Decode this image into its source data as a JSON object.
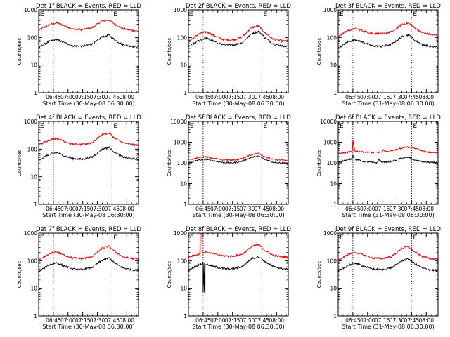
{
  "colors": {
    "events": "#000000",
    "lld": "#e00000",
    "axes": "#000000",
    "background": "#ffffff"
  },
  "chart_data": [
    {
      "type": "line",
      "title": "Det 1f BLACK = Events, RED = LLD",
      "xlabel": "Start Time (30-May-08 06:30:00)",
      "ylabel": "Counts/sec",
      "x_unit": "hh:mm",
      "xlim": [
        "06:30",
        "08:12"
      ],
      "xticks": [
        "06:45",
        "07:00",
        "07:15",
        "07:30",
        "07:45",
        "08:00"
      ],
      "yscale": "log",
      "ylim": [
        1,
        1000
      ],
      "yticks": [
        "1",
        "10",
        "100",
        "1000"
      ],
      "vlines": [
        "06:45",
        "07:45"
      ],
      "top_markers": [
        "E",
        "E"
      ],
      "series": [
        {
          "name": "Events",
          "color": "#000000",
          "x": [
            "06:30",
            "06:40",
            "06:48",
            "06:56",
            "07:05",
            "07:15",
            "07:25",
            "07:35",
            "07:42",
            "07:48",
            "07:56",
            "08:05",
            "08:12"
          ],
          "y": [
            42,
            70,
            85,
            65,
            50,
            48,
            58,
            105,
            120,
            80,
            55,
            48,
            45
          ]
        },
        {
          "name": "LLD",
          "color": "#e00000",
          "x": [
            "06:30",
            "06:40",
            "06:48",
            "06:56",
            "07:05",
            "07:15",
            "07:25",
            "07:35",
            "07:42",
            "07:48",
            "07:56",
            "08:05",
            "08:12"
          ],
          "y": [
            180,
            280,
            340,
            270,
            200,
            190,
            230,
            400,
            430,
            300,
            210,
            180,
            170
          ]
        }
      ]
    },
    {
      "type": "line",
      "title": "Det 2f BLACK = Events, RED = LLD",
      "xlabel": "Start Time (30-May-08 06:30:00)",
      "ylabel": "Counts/sec",
      "x_unit": "hh:mm",
      "xlim": [
        "06:30",
        "08:12"
      ],
      "xticks": [
        "06:45",
        "07:00",
        "07:15",
        "07:30",
        "07:45",
        "08:00"
      ],
      "yscale": "log",
      "ylim": [
        1,
        1000
      ],
      "yticks": [
        "1",
        "10",
        "100",
        "1000"
      ],
      "vlines": [
        "06:45",
        "07:45"
      ],
      "top_markers": [
        "E",
        "E"
      ],
      "series": [
        {
          "name": "Events",
          "color": "#000000",
          "x": [
            "06:30",
            "06:40",
            "06:48",
            "06:56",
            "07:05",
            "07:15",
            "07:25",
            "07:35",
            "07:42",
            "07:48",
            "07:56",
            "08:05",
            "08:12"
          ],
          "y": [
            45,
            75,
            95,
            72,
            55,
            52,
            65,
            140,
            165,
            100,
            60,
            50,
            47
          ]
        },
        {
          "name": "LLD",
          "color": "#e00000",
          "x": [
            "06:30",
            "06:40",
            "06:48",
            "06:56",
            "07:05",
            "07:15",
            "07:25",
            "07:35",
            "07:42",
            "07:48",
            "07:56",
            "08:05",
            "08:12"
          ],
          "y": [
            70,
            130,
            160,
            120,
            85,
            80,
            105,
            230,
            260,
            150,
            90,
            75,
            72
          ]
        }
      ]
    },
    {
      "type": "line",
      "title": "Det 3f BLACK = Events, RED = LLD",
      "xlabel": "Start Time (31-May-08 06:30:00)",
      "ylabel": "Counts/sec",
      "x_unit": "hh:mm",
      "xlim": [
        "06:30",
        "08:12"
      ],
      "xticks": [
        "06:45",
        "07:00",
        "07:15",
        "07:30",
        "07:45",
        "08:00"
      ],
      "yscale": "log",
      "ylim": [
        1,
        1000
      ],
      "yticks": [
        "1",
        "10",
        "100",
        "1000"
      ],
      "vlines": [
        "06:45",
        "07:45"
      ],
      "top_markers": [
        "E",
        "E"
      ],
      "series": [
        {
          "name": "Events",
          "color": "#000000",
          "x": [
            "06:30",
            "06:40",
            "06:48",
            "06:56",
            "07:05",
            "07:15",
            "07:25",
            "07:35",
            "07:42",
            "07:48",
            "07:56",
            "08:05",
            "08:12"
          ],
          "y": [
            40,
            70,
            85,
            65,
            50,
            47,
            58,
            105,
            125,
            80,
            55,
            47,
            44
          ]
        },
        {
          "name": "LLD",
          "color": "#e00000",
          "x": [
            "06:30",
            "06:40",
            "06:48",
            "06:56",
            "07:05",
            "07:15",
            "07:25",
            "07:35",
            "07:42",
            "07:48",
            "07:56",
            "08:05",
            "08:12"
          ],
          "y": [
            110,
            180,
            210,
            170,
            140,
            135,
            160,
            300,
            330,
            220,
            150,
            125,
            120
          ]
        }
      ]
    },
    {
      "type": "line",
      "title": "Det 4f BLACK = Events, RED = LLD",
      "xlabel": "Start Time (30-May-08 06:30:00)",
      "ylabel": "Counts/sec",
      "x_unit": "hh:mm",
      "xlim": [
        "06:30",
        "08:12"
      ],
      "xticks": [
        "06:45",
        "07:00",
        "07:15",
        "07:30",
        "07:45",
        "08:00"
      ],
      "yscale": "log",
      "ylim": [
        1,
        1000
      ],
      "yticks": [
        "1",
        "10",
        "100",
        "1000"
      ],
      "vlines": [
        "06:45",
        "07:45"
      ],
      "top_markers": [
        "E",
        "E"
      ],
      "series": [
        {
          "name": "Events",
          "color": "#000000",
          "x": [
            "06:30",
            "06:40",
            "06:48",
            "06:56",
            "07:05",
            "07:15",
            "07:25",
            "07:35",
            "07:42",
            "07:48",
            "07:56",
            "08:05",
            "08:12"
          ],
          "y": [
            40,
            62,
            75,
            58,
            45,
            43,
            52,
            100,
            115,
            75,
            52,
            45,
            42
          ]
        },
        {
          "name": "LLD",
          "color": "#e00000",
          "x": [
            "06:30",
            "06:40",
            "06:48",
            "06:56",
            "07:05",
            "07:15",
            "07:25",
            "07:35",
            "07:42",
            "07:48",
            "07:56",
            "08:05",
            "08:12"
          ],
          "y": [
            140,
            210,
            250,
            195,
            150,
            145,
            175,
            340,
            380,
            240,
            170,
            145,
            140
          ]
        }
      ]
    },
    {
      "type": "line",
      "title": "Det 5f BLACK = Events, RED = LLD",
      "xlabel": "Start Time (30-May-08 06:30:00)",
      "ylabel": "Counts/sec",
      "x_unit": "hh:mm",
      "xlim": [
        "06:30",
        "08:12"
      ],
      "xticks": [
        "06:45",
        "07:00",
        "07:15",
        "07:30",
        "07:45",
        "08:00"
      ],
      "yscale": "log",
      "ylim": [
        1,
        10000
      ],
      "yticks": [
        "1",
        "10",
        "100",
        "1000",
        "10000"
      ],
      "vlines": [
        "06:45",
        "07:45"
      ],
      "top_markers": [
        "E",
        "E"
      ],
      "series": [
        {
          "name": "Events",
          "color": "#000000",
          "x": [
            "06:30",
            "06:40",
            "06:48",
            "06:56",
            "07:05",
            "07:15",
            "07:25",
            "07:35",
            "07:42",
            "07:48",
            "07:56",
            "08:05",
            "08:12"
          ],
          "y": [
            100,
            135,
            150,
            125,
            105,
            100,
            120,
            190,
            210,
            150,
            110,
            100,
            98
          ]
        },
        {
          "name": "LLD",
          "color": "#e00000",
          "x": [
            "06:30",
            "06:40",
            "06:48",
            "06:56",
            "07:05",
            "07:15",
            "07:25",
            "07:35",
            "07:42",
            "07:48",
            "07:56",
            "08:05",
            "08:12"
          ],
          "y": [
            140,
            180,
            200,
            165,
            140,
            135,
            160,
            260,
            290,
            200,
            150,
            135,
            130
          ]
        }
      ]
    },
    {
      "type": "line",
      "title": "Det 6f BLACK = Events, RED = LLD",
      "xlabel": "Start Time (31-May-08 06:30:00)",
      "ylabel": "Counts/sec",
      "x_unit": "hh:mm",
      "xlim": [
        "06:30",
        "08:12"
      ],
      "xticks": [
        "06:45",
        "07:00",
        "07:15",
        "07:30",
        "07:45",
        "08:00"
      ],
      "yscale": "log",
      "ylim": [
        1,
        10000
      ],
      "yticks": [
        "1",
        "10",
        "100",
        "1000",
        "10000"
      ],
      "vlines": [
        "06:45",
        "07:45"
      ],
      "top_markers": [
        "E",
        "E"
      ],
      "series": [
        {
          "name": "Events",
          "color": "#000000",
          "x": [
            "06:30",
            "06:40",
            "06:44",
            "06:45",
            "06:47",
            "06:55",
            "07:05",
            "07:10",
            "07:11",
            "07:15",
            "07:25",
            "07:35",
            "07:42",
            "07:48",
            "07:56",
            "08:05",
            "08:12"
          ],
          "y": [
            110,
            140,
            160,
            250,
            150,
            120,
            105,
            100,
            150,
            108,
            120,
            170,
            185,
            140,
            115,
            105,
            100
          ]
        },
        {
          "name": "LLD",
          "color": "#e00000",
          "x": [
            "06:30",
            "06:40",
            "06:44",
            "06:45",
            "06:47",
            "06:55",
            "07:05",
            "07:15",
            "07:16",
            "07:20",
            "07:30",
            "07:40",
            "07:50",
            "08:00",
            "08:12"
          ],
          "y": [
            280,
            330,
            360,
            1300,
            380,
            340,
            320,
            330,
            420,
            350,
            450,
            600,
            480,
            330,
            300
          ]
        }
      ]
    },
    {
      "type": "line",
      "title": "Det 7f BLACK = Events, RED = LLD",
      "xlabel": "Start Time (30-May-08 06:30:00)",
      "ylabel": "Counts/sec",
      "x_unit": "hh:mm",
      "xlim": [
        "06:30",
        "08:12"
      ],
      "xticks": [
        "06:45",
        "07:00",
        "07:15",
        "07:30",
        "07:45",
        "08:00"
      ],
      "yscale": "log",
      "ylim": [
        1,
        1000
      ],
      "yticks": [
        "1",
        "10",
        "100",
        "1000"
      ],
      "vlines": [
        "06:45",
        "07:45"
      ],
      "top_markers": [
        "E",
        "E"
      ],
      "series": [
        {
          "name": "Events",
          "color": "#000000",
          "x": [
            "06:30",
            "06:40",
            "06:48",
            "06:56",
            "07:05",
            "07:15",
            "07:25",
            "07:35",
            "07:42",
            "07:48",
            "07:56",
            "08:05",
            "08:12"
          ],
          "y": [
            40,
            70,
            85,
            65,
            50,
            47,
            58,
            105,
            125,
            80,
            55,
            47,
            44
          ]
        },
        {
          "name": "LLD",
          "color": "#e00000",
          "x": [
            "06:30",
            "06:40",
            "06:48",
            "06:56",
            "07:05",
            "07:15",
            "07:25",
            "07:35",
            "07:42",
            "07:48",
            "07:56",
            "08:05",
            "08:12"
          ],
          "y": [
            100,
            170,
            210,
            160,
            125,
            120,
            145,
            290,
            330,
            210,
            140,
            120,
            115
          ]
        }
      ]
    },
    {
      "type": "line",
      "title": "Det 8f BLACK = Events, RED = LLD",
      "xlabel": "Start Time (30-May-08 06:30:00)",
      "ylabel": "Counts/sec",
      "x_unit": "hh:mm",
      "xlim": [
        "06:30",
        "08:12"
      ],
      "xticks": [
        "06:45",
        "07:00",
        "07:15",
        "07:30",
        "07:45",
        "08:00"
      ],
      "yscale": "log",
      "ylim": [
        1,
        1000
      ],
      "yticks": [
        "1",
        "10",
        "100",
        "1000"
      ],
      "vlines": [
        "06:45",
        "07:45"
      ],
      "top_markers": [
        "E",
        "E"
      ],
      "series": [
        {
          "name": "Events",
          "color": "#000000",
          "x": [
            "06:30",
            "06:40",
            "06:45",
            "06:46",
            "06:47",
            "06:48",
            "06:56",
            "07:05",
            "07:15",
            "07:25",
            "07:35",
            "07:42",
            "07:48",
            "07:56",
            "08:05",
            "08:12"
          ],
          "y": [
            45,
            70,
            80,
            7,
            70,
            75,
            62,
            52,
            50,
            62,
            120,
            140,
            95,
            62,
            52,
            48
          ]
        },
        {
          "name": "LLD",
          "color": "#e00000",
          "x": [
            "06:30",
            "06:40",
            "06:42",
            "06:42",
            "06:44",
            "06:44",
            "06:48",
            "06:56",
            "07:05",
            "07:15",
            "07:25",
            "07:35",
            "07:42",
            "07:48",
            "07:56",
            "08:05",
            "08:12"
          ],
          "y": [
            140,
            170,
            180,
            1000,
            1000,
            190,
            210,
            175,
            150,
            145,
            170,
            330,
            380,
            240,
            160,
            140,
            135
          ]
        }
      ]
    },
    {
      "type": "line",
      "title": "Det 9f BLACK = Events, RED = LLD",
      "xlabel": "Start Time (31-May-08 06:30:00)",
      "ylabel": "Counts/sec",
      "x_unit": "hh:mm",
      "xlim": [
        "06:30",
        "08:12"
      ],
      "xticks": [
        "06:45",
        "07:00",
        "07:15",
        "07:30",
        "07:45",
        "08:00"
      ],
      "yscale": "log",
      "ylim": [
        1,
        1000
      ],
      "yticks": [
        "1",
        "10",
        "100",
        "1000"
      ],
      "vlines": [
        "06:45",
        "07:45"
      ],
      "top_markers": [
        "E",
        "E"
      ],
      "series": [
        {
          "name": "Events",
          "color": "#000000",
          "x": [
            "06:30",
            "06:40",
            "06:48",
            "06:56",
            "07:05",
            "07:15",
            "07:25",
            "07:35",
            "07:42",
            "07:48",
            "07:56",
            "08:05",
            "08:12"
          ],
          "y": [
            40,
            68,
            82,
            63,
            50,
            47,
            56,
            100,
            118,
            78,
            54,
            46,
            43
          ]
        },
        {
          "name": "LLD",
          "color": "#e00000",
          "x": [
            "06:30",
            "06:40",
            "06:48",
            "06:56",
            "07:05",
            "07:15",
            "07:25",
            "07:35",
            "07:42",
            "07:48",
            "07:56",
            "08:05",
            "08:12"
          ],
          "y": [
            100,
            170,
            200,
            160,
            125,
            120,
            145,
            280,
            320,
            205,
            140,
            120,
            115
          ]
        }
      ]
    }
  ]
}
